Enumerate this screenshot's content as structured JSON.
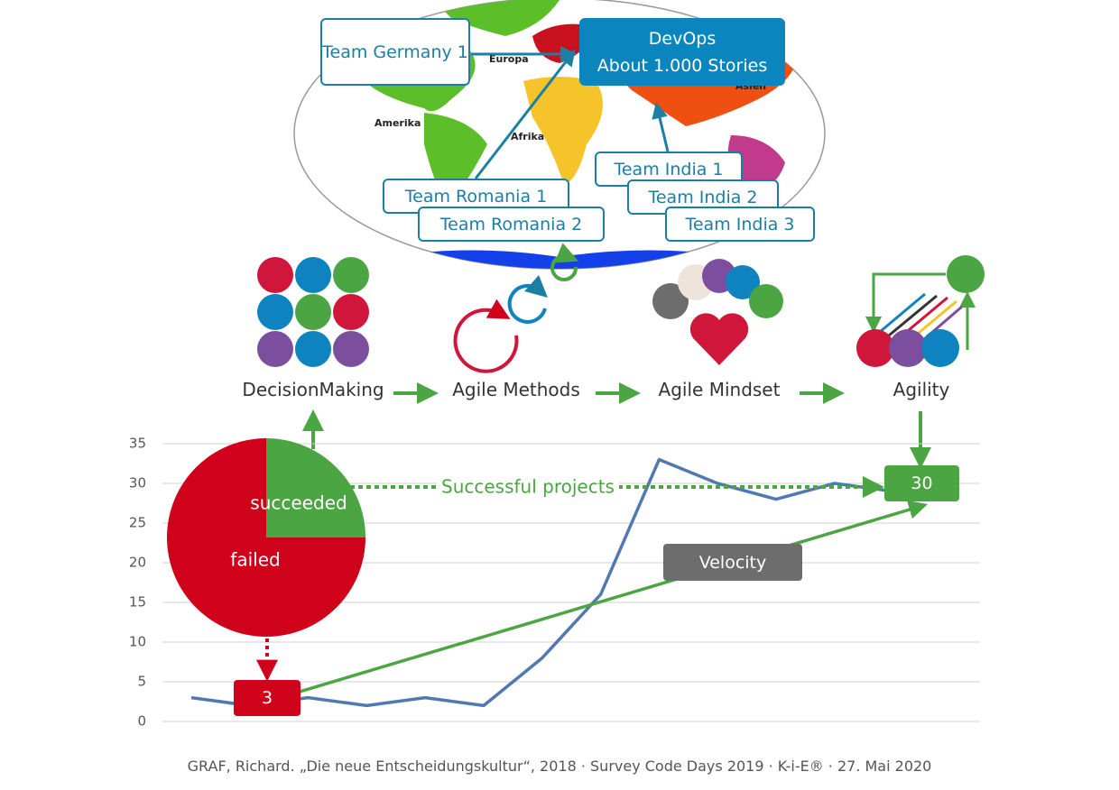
{
  "chart_data": [
    {
      "type": "line",
      "categories": [
        null,
        null,
        null,
        null,
        null,
        null,
        null,
        null,
        null,
        null,
        null,
        null,
        null
      ],
      "values": [
        3,
        2,
        3,
        2,
        3,
        2,
        8,
        16,
        33,
        30,
        28,
        30,
        29
      ],
      "color": "#4f79b0",
      "ylim": [
        0,
        35
      ],
      "yticks": [
        0,
        5,
        10,
        15,
        20,
        25,
        30,
        35
      ],
      "grid": true,
      "markers": {
        "failed": 3,
        "successful": 30
      },
      "annotations": {
        "successful_projects": "Successful projects",
        "velocity": "Velocity"
      }
    },
    {
      "type": "pie",
      "categories": [
        "succeeded",
        "failed"
      ],
      "values": [
        25,
        75
      ],
      "colors": [
        "#4aa542",
        "#d0021b"
      ]
    }
  ],
  "map": {
    "labels": {
      "europe": "Europa",
      "america": "Amerika",
      "africa": "Afrika",
      "asia": "Asien"
    },
    "hub": {
      "title": "DevOps",
      "subtitle": "About 1.000 Stories"
    },
    "teams": [
      "Team Germany 1",
      "Team Romania 1",
      "Team Romania 2",
      "Team India 1",
      "Team India 2",
      "Team India 3"
    ]
  },
  "flow": [
    "DecisionMaking",
    "Agile Methods",
    "Agile Mindset",
    "Agility"
  ],
  "footer": "GRAF, Richard. „Die neue Entscheidungskultur“, 2018 · Survey Code Days 2019 · K-i-E® · 27. Mai 2020"
}
